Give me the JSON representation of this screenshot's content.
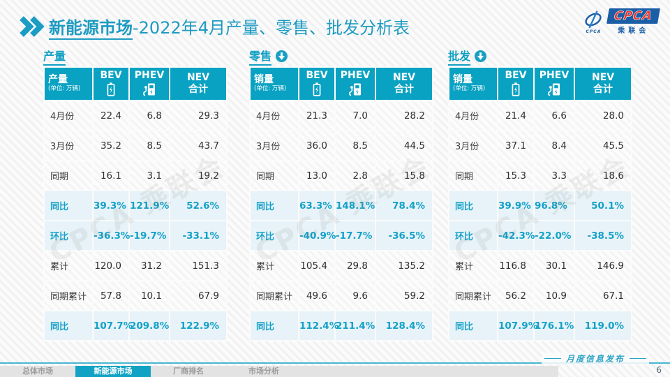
{
  "header": {
    "title_bold": "新能源市场",
    "title_rest": "-2022年4月产量、零售、批发分析表",
    "logo": {
      "name": "CPCA",
      "sub": "乘联会",
      "mark_caption": "CPCA"
    }
  },
  "columns": {
    "bev": "BEV",
    "phev": "PHEV",
    "nev_line1": "NEV",
    "nev_line2": "合计"
  },
  "row_labels": [
    "4月份",
    "3月份",
    "同期",
    "同比",
    "环比",
    "累计",
    "同期累计",
    "同比"
  ],
  "highlight_rows": [
    3,
    4,
    7
  ],
  "tables": [
    {
      "section": "产量",
      "has_arrow": false,
      "unit_label": "产量",
      "unit_sub": "(单位: 万辆)",
      "rows": [
        [
          "22.4",
          "6.8",
          "29.3"
        ],
        [
          "35.2",
          "8.5",
          "43.7"
        ],
        [
          "16.1",
          "3.1",
          "19.2"
        ],
        [
          "39.3%",
          "121.9%",
          "52.6%"
        ],
        [
          "-36.3%",
          "-19.7%",
          "-33.1%"
        ],
        [
          "120.0",
          "31.2",
          "151.3"
        ],
        [
          "57.8",
          "10.1",
          "67.9"
        ],
        [
          "107.7%",
          "209.8%",
          "122.9%"
        ]
      ]
    },
    {
      "section": "零售",
      "has_arrow": true,
      "unit_label": "销量",
      "unit_sub": "(单位: 万辆)",
      "rows": [
        [
          "21.3",
          "7.0",
          "28.2"
        ],
        [
          "36.0",
          "8.5",
          "44.5"
        ],
        [
          "13.0",
          "2.8",
          "15.8"
        ],
        [
          "63.3%",
          "148.1%",
          "78.4%"
        ],
        [
          "-40.9%",
          "-17.7%",
          "-36.5%"
        ],
        [
          "105.4",
          "29.8",
          "135.2"
        ],
        [
          "49.6",
          "9.6",
          "59.2"
        ],
        [
          "112.4%",
          "211.4%",
          "128.4%"
        ]
      ]
    },
    {
      "section": "批发",
      "has_arrow": true,
      "unit_label": "销量",
      "unit_sub": "(单位: 万辆)",
      "rows": [
        [
          "21.4",
          "6.6",
          "28.0"
        ],
        [
          "37.1",
          "8.4",
          "45.5"
        ],
        [
          "15.3",
          "3.3",
          "18.6"
        ],
        [
          "39.9%",
          "96.8%",
          "50.1%"
        ],
        [
          "-42.3%",
          "-22.0%",
          "-38.5%"
        ],
        [
          "116.8",
          "30.1",
          "146.9"
        ],
        [
          "56.2",
          "10.9",
          "67.1"
        ],
        [
          "107.9%",
          "176.1%",
          "119.0%"
        ]
      ]
    }
  ],
  "watermark": "CPCA 乘联会",
  "footer": {
    "tabs": [
      "总体市场",
      "新能源市场",
      "厂商排名",
      "市场分析"
    ],
    "active_tab": "新能源市场",
    "release_label": "月度信息发布",
    "page_number": "6"
  },
  "colors": {
    "teal": "#0aa2c2",
    "title_teal": "#1e9bc2",
    "highlight_bg": "#e7f3f8",
    "highlight_text": "#14a1c8",
    "logo_blue": "#1b5ea6",
    "logo_red": "#e8332a"
  }
}
